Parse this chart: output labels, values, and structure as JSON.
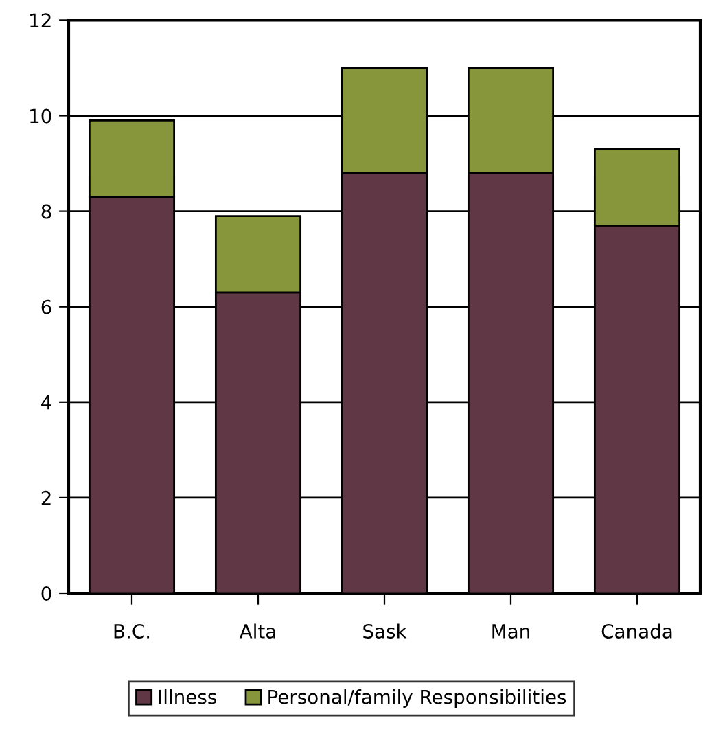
{
  "chart_data": {
    "type": "bar",
    "stacked": true,
    "categories": [
      "B.C.",
      "Alta",
      "Sask",
      "Man",
      "Canada"
    ],
    "series": [
      {
        "name": "Illness",
        "color": "#603845",
        "values": [
          8.3,
          6.3,
          8.8,
          8.8,
          7.7
        ]
      },
      {
        "name": "Personal/family Responsibilities",
        "color": "#87963a",
        "values": [
          1.6,
          1.6,
          2.2,
          2.2,
          1.6
        ]
      }
    ],
    "ylim": [
      0,
      12
    ],
    "yticks": [
      0,
      2,
      4,
      6,
      8,
      10,
      12
    ],
    "grid": "y",
    "legend": "bottom"
  }
}
